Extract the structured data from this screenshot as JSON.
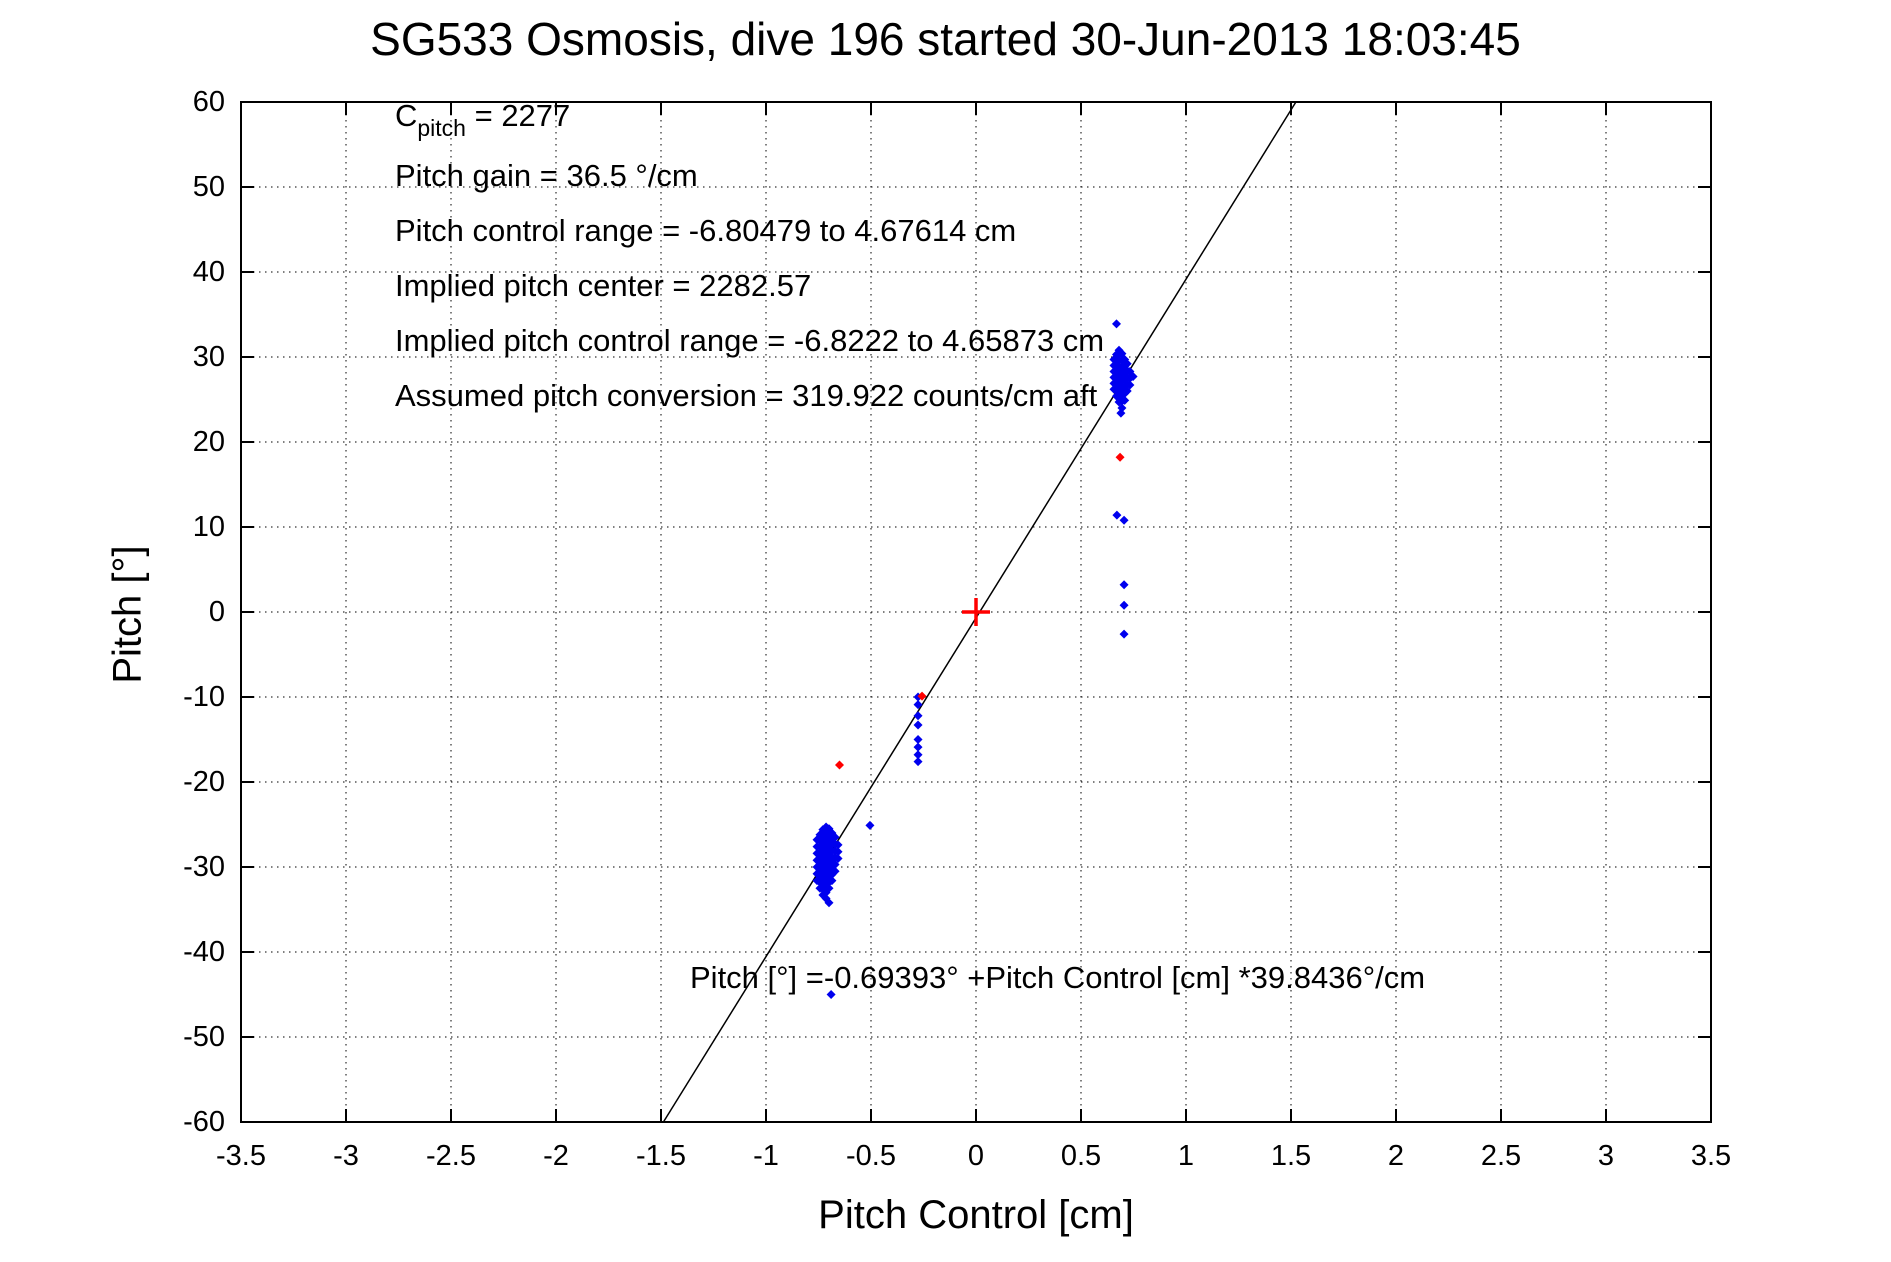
{
  "window": {
    "background": "#ffffff"
  },
  "chart_data": {
    "type": "scatter",
    "title": "SG533 Osmosis, dive 196 started 30-Jun-2013 18:03:45",
    "xlabel": "Pitch Control [cm]",
    "ylabel": "Pitch [°]",
    "xlim": [
      -3.5,
      3.5
    ],
    "ylim": [
      -60,
      60
    ],
    "grid": "dotted",
    "frame_color": "#000000",
    "xticks": [
      {
        "v": -3.5,
        "label": "-3.5"
      },
      {
        "v": -3,
        "label": "-3"
      },
      {
        "v": -2.5,
        "label": "-2.5"
      },
      {
        "v": -2,
        "label": "-2"
      },
      {
        "v": -1.5,
        "label": "-1.5"
      },
      {
        "v": -1,
        "label": "-1"
      },
      {
        "v": -0.5,
        "label": "-0.5"
      },
      {
        "v": 0,
        "label": "0"
      },
      {
        "v": 0.5,
        "label": "0.5"
      },
      {
        "v": 1,
        "label": "1"
      },
      {
        "v": 1.5,
        "label": "1.5"
      },
      {
        "v": 2,
        "label": "2"
      },
      {
        "v": 2.5,
        "label": "2.5"
      },
      {
        "v": 3,
        "label": "3"
      },
      {
        "v": 3.5,
        "label": "3.5"
      }
    ],
    "yticks": [
      {
        "v": 60,
        "label": "60"
      },
      {
        "v": 50,
        "label": "50"
      },
      {
        "v": 40,
        "label": "40"
      },
      {
        "v": 30,
        "label": "30"
      },
      {
        "v": 20,
        "label": "20"
      },
      {
        "v": 10,
        "label": "10"
      },
      {
        "v": 0,
        "label": "0"
      },
      {
        "v": -10,
        "label": "-10"
      },
      {
        "v": -20,
        "label": "-20"
      },
      {
        "v": -30,
        "label": "-30"
      },
      {
        "v": -40,
        "label": "-40"
      },
      {
        "v": -50,
        "label": "-50"
      },
      {
        "v": -60,
        "label": "-60"
      }
    ],
    "fit_line": {
      "intercept": -0.69393,
      "slope": 39.8436,
      "color": "#000000"
    },
    "series": [
      {
        "name": "pitch-observations-blue",
        "color": "#0000ee",
        "marker": "diamond",
        "points": [
          [
            -0.757,
            -26.8
          ],
          [
            -0.757,
            -27.6
          ],
          [
            -0.757,
            -28.4
          ],
          [
            -0.757,
            -29.2
          ],
          [
            -0.757,
            -30.0
          ],
          [
            -0.757,
            -30.8
          ],
          [
            -0.757,
            -31.6
          ],
          [
            -0.743,
            -26.2
          ],
          [
            -0.743,
            -26.9
          ],
          [
            -0.743,
            -27.6
          ],
          [
            -0.743,
            -28.3
          ],
          [
            -0.743,
            -29.0
          ],
          [
            -0.743,
            -29.7
          ],
          [
            -0.743,
            -30.4
          ],
          [
            -0.743,
            -31.1
          ],
          [
            -0.743,
            -31.8
          ],
          [
            -0.743,
            -32.5
          ],
          [
            -0.729,
            -25.6
          ],
          [
            -0.729,
            -26.3
          ],
          [
            -0.729,
            -27.0
          ],
          [
            -0.729,
            -27.7
          ],
          [
            -0.729,
            -28.4
          ],
          [
            -0.729,
            -29.1
          ],
          [
            -0.729,
            -29.8
          ],
          [
            -0.729,
            -30.5
          ],
          [
            -0.729,
            -31.2
          ],
          [
            -0.729,
            -31.9
          ],
          [
            -0.729,
            -32.6
          ],
          [
            -0.729,
            -33.3
          ],
          [
            -0.714,
            -25.3
          ],
          [
            -0.714,
            -26.0
          ],
          [
            -0.714,
            -26.7
          ],
          [
            -0.714,
            -27.4
          ],
          [
            -0.714,
            -28.1
          ],
          [
            -0.714,
            -28.8
          ],
          [
            -0.714,
            -29.5
          ],
          [
            -0.714,
            -30.2
          ],
          [
            -0.714,
            -30.9
          ],
          [
            -0.714,
            -31.6
          ],
          [
            -0.714,
            -32.3
          ],
          [
            -0.714,
            -33.0
          ],
          [
            -0.714,
            -33.7
          ],
          [
            -0.7,
            -25.5
          ],
          [
            -0.7,
            -26.2
          ],
          [
            -0.7,
            -26.9
          ],
          [
            -0.7,
            -27.6
          ],
          [
            -0.7,
            -28.3
          ],
          [
            -0.7,
            -29.0
          ],
          [
            -0.7,
            -29.7
          ],
          [
            -0.7,
            -30.4
          ],
          [
            -0.7,
            -31.1
          ],
          [
            -0.7,
            -31.8
          ],
          [
            -0.7,
            -32.5
          ],
          [
            -0.7,
            -34.2
          ],
          [
            -0.686,
            -26.0
          ],
          [
            -0.686,
            -26.7
          ],
          [
            -0.686,
            -27.4
          ],
          [
            -0.686,
            -28.1
          ],
          [
            -0.686,
            -28.8
          ],
          [
            -0.686,
            -29.5
          ],
          [
            -0.686,
            -30.2
          ],
          [
            -0.686,
            -30.9
          ],
          [
            -0.686,
            -31.6
          ],
          [
            -0.671,
            -26.5
          ],
          [
            -0.671,
            -27.3
          ],
          [
            -0.671,
            -28.1
          ],
          [
            -0.671,
            -28.9
          ],
          [
            -0.671,
            -29.7
          ],
          [
            -0.671,
            -30.5
          ],
          [
            -0.657,
            -27.4
          ],
          [
            -0.657,
            -28.2
          ],
          [
            -0.657,
            -29.0
          ],
          [
            -0.69,
            -45.0
          ],
          [
            -0.505,
            -25.1
          ],
          [
            -0.276,
            -10.0
          ],
          [
            -0.276,
            -10.9
          ],
          [
            -0.276,
            -12.2
          ],
          [
            -0.276,
            -13.3
          ],
          [
            -0.276,
            -15.0
          ],
          [
            -0.276,
            -15.9
          ],
          [
            -0.276,
            -16.8
          ],
          [
            -0.276,
            -17.6
          ],
          [
            0.657,
            26.2
          ],
          [
            0.657,
            26.9
          ],
          [
            0.657,
            27.6
          ],
          [
            0.657,
            28.3
          ],
          [
            0.657,
            29.0
          ],
          [
            0.657,
            29.7
          ],
          [
            0.669,
            25.4
          ],
          [
            0.669,
            26.1
          ],
          [
            0.669,
            26.8
          ],
          [
            0.669,
            27.5
          ],
          [
            0.669,
            28.2
          ],
          [
            0.669,
            28.9
          ],
          [
            0.669,
            29.6
          ],
          [
            0.669,
            30.3
          ],
          [
            0.681,
            24.7
          ],
          [
            0.681,
            25.4
          ],
          [
            0.681,
            26.1
          ],
          [
            0.681,
            26.8
          ],
          [
            0.681,
            27.5
          ],
          [
            0.681,
            28.2
          ],
          [
            0.681,
            28.9
          ],
          [
            0.681,
            29.6
          ],
          [
            0.681,
            30.3
          ],
          [
            0.681,
            30.8
          ],
          [
            0.695,
            24.0
          ],
          [
            0.695,
            24.8
          ],
          [
            0.695,
            25.6
          ],
          [
            0.695,
            26.4
          ],
          [
            0.695,
            27.2
          ],
          [
            0.695,
            28.0
          ],
          [
            0.695,
            28.8
          ],
          [
            0.695,
            29.6
          ],
          [
            0.695,
            30.4
          ],
          [
            0.708,
            24.9
          ],
          [
            0.708,
            25.7
          ],
          [
            0.708,
            26.5
          ],
          [
            0.708,
            27.3
          ],
          [
            0.708,
            28.1
          ],
          [
            0.708,
            28.9
          ],
          [
            0.708,
            29.7
          ],
          [
            0.72,
            26.0
          ],
          [
            0.72,
            26.8
          ],
          [
            0.72,
            27.6
          ],
          [
            0.72,
            28.4
          ],
          [
            0.72,
            29.2
          ],
          [
            0.733,
            26.7
          ],
          [
            0.733,
            27.5
          ],
          [
            0.733,
            28.3
          ],
          [
            0.748,
            27.7
          ],
          [
            0.669,
            33.9
          ],
          [
            0.69,
            23.4
          ],
          [
            0.671,
            11.4
          ],
          [
            0.705,
            10.8
          ],
          [
            0.705,
            3.2
          ],
          [
            0.705,
            0.8
          ],
          [
            0.705,
            -2.6
          ]
        ]
      },
      {
        "name": "pitch-flagged-red",
        "color": "#ff0000",
        "marker": "diamond",
        "points": [
          [
            -0.65,
            -18.0
          ],
          [
            -0.257,
            -9.9
          ],
          [
            0.686,
            18.2
          ]
        ]
      },
      {
        "name": "origin-reference",
        "color": "#ff0000",
        "marker": "plus",
        "points": [
          [
            0,
            0
          ]
        ]
      }
    ]
  },
  "annotations": {
    "cpitch": {
      "pre": "C",
      "sub": "pitch",
      "post": " = 2277"
    },
    "lines": [
      "Pitch gain = 36.5 °/cm",
      "Pitch control range = -6.80479 to 4.67614 cm",
      "Implied pitch center = 2282.57",
      "Implied pitch control range = -6.8222 to 4.65873 cm",
      "Assumed pitch conversion = 319.922 counts/cm aft"
    ],
    "equation": "Pitch [°] =-0.69393° +Pitch Control [cm] *39.8436°/cm"
  },
  "layout_colors": {
    "axis": "#000000",
    "grid": "#000000",
    "text": "#000000"
  }
}
